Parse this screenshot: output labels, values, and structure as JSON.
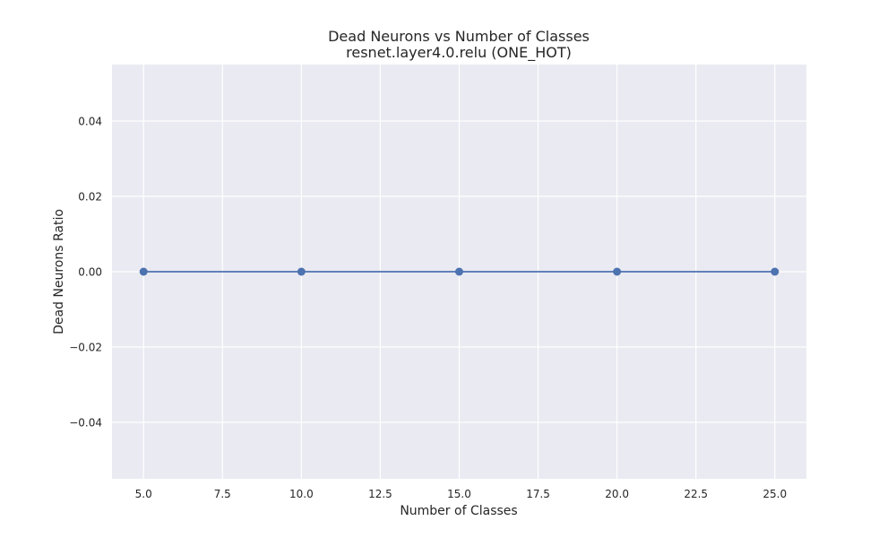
{
  "chart_data": {
    "type": "line",
    "title": "Dead Neurons vs Number of Classes",
    "subtitle": "resnet.layer4.0.relu (ONE_HOT)",
    "xlabel": "Number of Classes",
    "ylabel": "Dead Neurons Ratio",
    "x": [
      5,
      10,
      15,
      20,
      25
    ],
    "series": [
      {
        "values": [
          0.0,
          0.0,
          0.0,
          0.0,
          0.0
        ],
        "color": "#4c72b0",
        "marker": "circle"
      }
    ],
    "xlim": [
      4.0,
      26.0
    ],
    "ylim": [
      -0.055,
      0.055
    ],
    "xticks": [
      5.0,
      7.5,
      10.0,
      12.5,
      15.0,
      17.5,
      20.0,
      22.5,
      25.0
    ],
    "xtick_labels": [
      "5.0",
      "7.5",
      "10.0",
      "12.5",
      "15.0",
      "17.5",
      "20.0",
      "22.5",
      "25.0"
    ],
    "yticks": [
      -0.04,
      -0.02,
      0.0,
      0.02,
      0.04
    ],
    "ytick_labels": [
      "−0.04",
      "−0.02",
      "0.00",
      "0.02",
      "0.04"
    ],
    "grid": true,
    "background": "#eaeaf2",
    "grid_color": "#ffffff"
  }
}
